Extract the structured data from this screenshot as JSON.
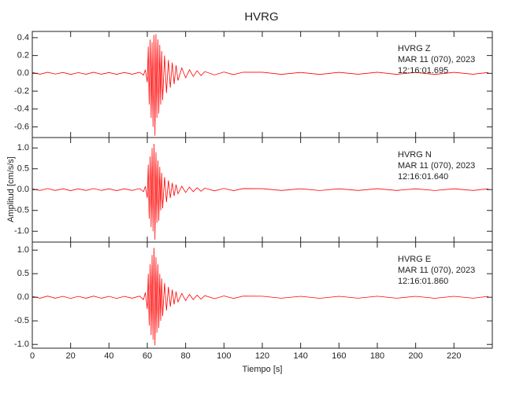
{
  "chart_data": [
    {
      "type": "line",
      "title": "HVRG",
      "ylabel": "Amplitud [cm/s/s]",
      "annotations": [
        "HVRG   Z",
        "MAR 11 (070), 2023",
        "12:16:01.695"
      ],
      "xlim": [
        0,
        240
      ],
      "ylim": [
        -0.72,
        0.47
      ],
      "yticks": [
        0.4,
        0.2,
        {
          "value": 0,
          "label": "0.0"
        },
        -0.2,
        -0.4,
        -0.6
      ],
      "series": [
        {
          "color": "#ff0000",
          "x": [
            0,
            4,
            8,
            12,
            16,
            20,
            24,
            28,
            32,
            36,
            40,
            44,
            48,
            52,
            56,
            58,
            59,
            60,
            60.5,
            61,
            61.5,
            62,
            62.5,
            63,
            63.5,
            64,
            64.5,
            65,
            65.5,
            66,
            66.5,
            67,
            67.5,
            68,
            69,
            70,
            71,
            72,
            73,
            74,
            75,
            76,
            78,
            80,
            82,
            84,
            86,
            88,
            90,
            95,
            100,
            105,
            110,
            120,
            130,
            140,
            150,
            160,
            170,
            180,
            190,
            200,
            210,
            220,
            230,
            238
          ],
          "values": [
            0.01,
            -0.01,
            0.012,
            -0.008,
            0.01,
            -0.012,
            0.008,
            -0.01,
            0.012,
            -0.01,
            0.009,
            -0.011,
            0.01,
            -0.01,
            0.012,
            -0.02,
            0.04,
            -0.1,
            0.3,
            -0.35,
            0.38,
            -0.5,
            0.35,
            -0.6,
            0.43,
            -0.7,
            0.44,
            -0.5,
            0.38,
            -0.45,
            0.32,
            -0.35,
            0.25,
            -0.3,
            0.2,
            -0.22,
            0.15,
            -0.16,
            0.12,
            -0.12,
            0.09,
            -0.08,
            0.06,
            -0.05,
            0.04,
            -0.035,
            0.03,
            -0.025,
            0.02,
            -0.018,
            0.015,
            -0.014,
            0.013,
            0.012,
            -0.011,
            0.01,
            -0.012,
            0.011,
            -0.01,
            0.012,
            -0.011,
            0.01,
            -0.012,
            0.011,
            -0.01,
            0.01
          ]
        }
      ]
    },
    {
      "type": "line",
      "annotations": [
        "HVRG   N",
        "MAR 11 (070), 2023",
        "12:16:01.640"
      ],
      "xlim": [
        0,
        240
      ],
      "ylim": [
        -1.26,
        1.25
      ],
      "yticks": [
        {
          "value": 1,
          "label": "1.0"
        },
        0.5,
        {
          "value": 0,
          "label": "0.0"
        },
        -0.5,
        {
          "value": -1,
          "label": "-1.0"
        }
      ],
      "series": [
        {
          "color": "#ff0000",
          "x": [
            0,
            4,
            8,
            12,
            16,
            20,
            24,
            28,
            32,
            36,
            40,
            44,
            48,
            52,
            56,
            58,
            59,
            60,
            60.5,
            61,
            61.5,
            62,
            62.5,
            63,
            63.5,
            64,
            64.5,
            65,
            65.5,
            66,
            66.5,
            67,
            67.5,
            68,
            69,
            70,
            71,
            72,
            73,
            74,
            75,
            76,
            78,
            80,
            82,
            84,
            86,
            88,
            90,
            95,
            100,
            105,
            110,
            120,
            130,
            140,
            150,
            160,
            170,
            180,
            190,
            200,
            210,
            220,
            230,
            238
          ],
          "values": [
            0.02,
            -0.02,
            0.025,
            -0.02,
            0.02,
            -0.025,
            0.02,
            -0.02,
            0.025,
            -0.02,
            0.02,
            -0.025,
            0.02,
            -0.02,
            0.025,
            -0.05,
            0.08,
            -0.2,
            0.6,
            -0.7,
            0.8,
            -0.9,
            1.0,
            -1.0,
            1.1,
            -1.2,
            0.9,
            -0.8,
            0.7,
            -0.75,
            0.55,
            -0.5,
            0.4,
            -0.45,
            0.3,
            -0.3,
            0.22,
            -0.2,
            0.16,
            -0.15,
            0.12,
            -0.1,
            0.08,
            -0.07,
            0.06,
            -0.05,
            0.045,
            -0.04,
            0.035,
            -0.03,
            0.028,
            -0.025,
            0.024,
            0.022,
            -0.02,
            0.02,
            -0.022,
            0.02,
            -0.02,
            0.022,
            -0.02,
            0.02,
            -0.022,
            0.02,
            -0.02,
            0.02
          ]
        }
      ]
    },
    {
      "type": "line",
      "xlabel": "Tiempo [s]",
      "annotations": [
        "HVRG   E",
        "MAR 11 (070), 2023",
        "12:16:01.860"
      ],
      "xlim": [
        0,
        240
      ],
      "ylim": [
        -1.08,
        1.17
      ],
      "xticks": [
        0,
        20,
        40,
        60,
        80,
        100,
        120,
        140,
        160,
        180,
        200,
        220
      ],
      "yticks": [
        {
          "value": 1,
          "label": "1.0"
        },
        0.5,
        {
          "value": 0,
          "label": "0.0"
        },
        -0.5,
        {
          "value": -1,
          "label": "-1.0"
        }
      ],
      "series": [
        {
          "color": "#ff0000",
          "x": [
            0,
            4,
            8,
            12,
            16,
            20,
            24,
            28,
            32,
            36,
            40,
            44,
            48,
            52,
            56,
            58,
            59,
            60,
            60.5,
            61,
            61.5,
            62,
            62.5,
            63,
            63.5,
            64,
            64.5,
            65,
            65.5,
            66,
            66.5,
            67,
            67.5,
            68,
            69,
            70,
            71,
            72,
            73,
            74,
            75,
            76,
            78,
            80,
            82,
            84,
            86,
            88,
            90,
            95,
            100,
            105,
            110,
            120,
            130,
            140,
            150,
            160,
            170,
            180,
            190,
            200,
            210,
            220,
            230,
            238
          ],
          "values": [
            0.02,
            -0.02,
            0.025,
            -0.02,
            0.02,
            -0.025,
            0.02,
            -0.02,
            0.025,
            -0.02,
            0.02,
            -0.025,
            0.02,
            -0.02,
            0.025,
            -0.05,
            0.1,
            -0.25,
            0.5,
            -0.6,
            0.7,
            -0.8,
            0.9,
            -0.9,
            1.05,
            -1.02,
            0.85,
            -0.75,
            0.7,
            -0.65,
            0.5,
            -0.5,
            0.4,
            -0.4,
            0.3,
            -0.28,
            0.22,
            -0.2,
            0.16,
            -0.15,
            0.12,
            -0.1,
            0.08,
            -0.07,
            0.06,
            -0.05,
            0.045,
            -0.04,
            0.035,
            -0.03,
            0.028,
            -0.025,
            0.024,
            0.022,
            -0.02,
            0.02,
            -0.022,
            0.02,
            -0.02,
            0.022,
            -0.02,
            0.02,
            -0.022,
            0.02,
            -0.02,
            0.02
          ]
        }
      ]
    }
  ]
}
